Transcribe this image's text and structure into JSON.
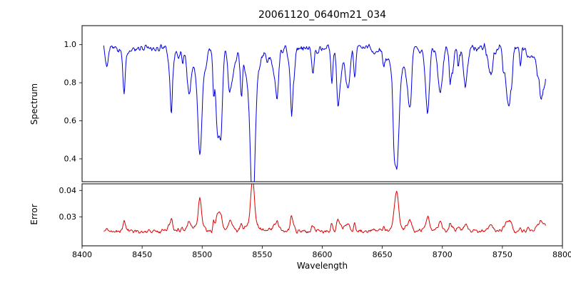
{
  "figure": {
    "title": "20061120_0640m21_034"
  },
  "chart_data": {
    "type": "line",
    "title": "20061120_0640m21_034",
    "xlabel": "Wavelength",
    "xlim": [
      8400,
      8800
    ],
    "x_ticks": [
      8400,
      8450,
      8500,
      8550,
      8600,
      8650,
      8700,
      8750,
      8800
    ],
    "x_tick_labels": [
      "8400",
      "8450",
      "8500",
      "8550",
      "8600",
      "8650",
      "8700",
      "8750",
      "8800"
    ],
    "data_x_range": [
      8418,
      8786
    ],
    "sample_step": 0.5,
    "legend": "none",
    "grid": false,
    "panels": [
      {
        "name": "spectrum",
        "ylabel": "Spectrum",
        "ylim": [
          0.28,
          1.1
        ],
        "y_ticks": [
          0.4,
          0.6,
          0.8,
          1.0
        ],
        "y_tick_labels": [
          "0.4",
          "0.6",
          "0.8",
          "1.0"
        ],
        "line_color": "#0000dd",
        "continuum": 0.985,
        "noise_amplitude": 0.03,
        "weak_lines": {
          "count": 100,
          "min_depth": 0.012,
          "max_extra_depth": 0.22
        },
        "absorption_lines": [
          {
            "center": 8435,
            "depth": 0.235,
            "sigma": 0.9
          },
          {
            "center": 8498,
            "depth": 0.555,
            "sigma": 1.6
          },
          {
            "center": 8542,
            "depth": 0.675,
            "sigma": 2.0
          },
          {
            "center": 8662,
            "depth": 0.645,
            "sigma": 1.8
          },
          {
            "center": 8688,
            "depth": 0.215,
            "sigma": 1.1
          }
        ]
      },
      {
        "name": "error",
        "ylabel": "Error",
        "ylim": [
          0.019,
          0.0425
        ],
        "y_ticks": [
          0.03,
          0.04
        ],
        "y_tick_labels": [
          "0.03",
          "0.04"
        ],
        "line_color": "#dd0000",
        "baseline": 0.0245,
        "noise_amplitude": 0.0012,
        "spikes": [
          {
            "center": 8435,
            "peak": 0.0285,
            "sigma": 0.9
          },
          {
            "center": 8498,
            "peak": 0.0375,
            "sigma": 1.2
          },
          {
            "center": 8542,
            "peak": 0.0415,
            "sigma": 1.5
          },
          {
            "center": 8662,
            "peak": 0.04,
            "sigma": 1.4
          },
          {
            "center": 8688,
            "peak": 0.028,
            "sigma": 1.0
          }
        ]
      }
    ]
  }
}
